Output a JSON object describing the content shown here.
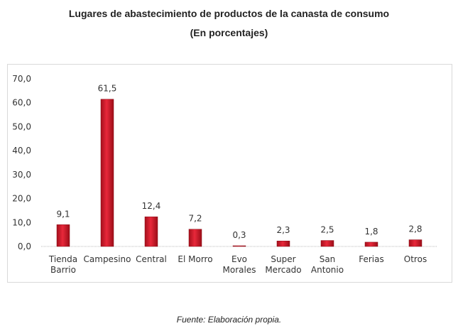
{
  "chart_data": {
    "type": "bar",
    "title": "Lugares de abastecimiento de productos de la canasta de consumo",
    "subtitle": "(En porcentajes)",
    "categories": [
      [
        "Tienda",
        "Barrio"
      ],
      [
        "Campesino"
      ],
      [
        "Central"
      ],
      [
        "El Morro"
      ],
      [
        "Evo",
        "Morales"
      ],
      [
        "Super",
        "Mercado"
      ],
      [
        "San",
        "Antonio"
      ],
      [
        "Ferias"
      ],
      [
        "Otros"
      ]
    ],
    "values": [
      9.1,
      61.5,
      12.4,
      7.2,
      0.3,
      2.3,
      2.5,
      1.8,
      2.8
    ],
    "value_labels": [
      "9,1",
      "61,5",
      "12,4",
      "7,2",
      "0,3",
      "2,3",
      "2,5",
      "1,8",
      "2,8"
    ],
    "yticks": [
      "0,0",
      "10,0",
      "20,0",
      "30,0",
      "40,0",
      "50,0",
      "60,0",
      "70,0"
    ],
    "ylim": [
      0,
      70
    ],
    "xlabel": "",
    "ylabel": "",
    "bar_color": "#d7192b",
    "grid": false
  },
  "source": "Fuente: Elaboración propia."
}
